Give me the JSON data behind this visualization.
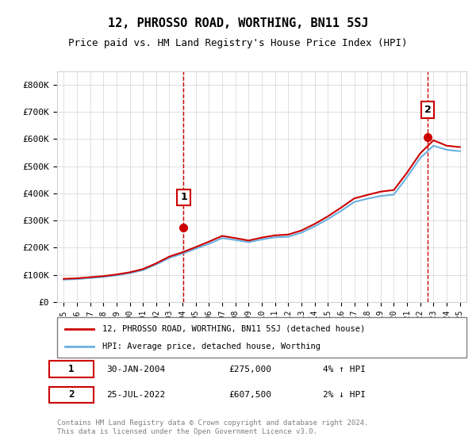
{
  "title": "12, PHROSSO ROAD, WORTHING, BN11 5SJ",
  "subtitle": "Price paid vs. HM Land Registry's House Price Index (HPI)",
  "hpi_label": "HPI: Average price, detached house, Worthing",
  "prop_label": "12, PHROSSO ROAD, WORTHING, BN11 5SJ (detached house)",
  "footer": "Contains HM Land Registry data © Crown copyright and database right 2024.\nThis data is licensed under the Open Government Licence v3.0.",
  "annotation1": {
    "num": "1",
    "date": "30-JAN-2004",
    "price": "£275,000",
    "pct": "4% ↑ HPI"
  },
  "annotation2": {
    "num": "2",
    "date": "25-JUL-2022",
    "price": "£607,500",
    "pct": "2% ↓ HPI"
  },
  "sale1_x": 2004.08,
  "sale1_y": 275000,
  "sale2_x": 2022.56,
  "sale2_y": 607500,
  "hpi_color": "#6ab0e0",
  "prop_color": "#cc0000",
  "dashed_color": "#cc0000",
  "ylim": [
    0,
    850000
  ],
  "yticks": [
    0,
    100000,
    200000,
    300000,
    400000,
    500000,
    600000,
    700000,
    800000
  ],
  "ytick_labels": [
    "£0",
    "£100K",
    "£200K",
    "£300K",
    "£400K",
    "£500K",
    "£600K",
    "£700K",
    "£800K"
  ],
  "xlim": [
    1994.5,
    2025.5
  ],
  "years": [
    1995,
    1996,
    1997,
    1998,
    1999,
    2000,
    2001,
    2002,
    2003,
    2004,
    2005,
    2006,
    2007,
    2008,
    2009,
    2010,
    2011,
    2012,
    2013,
    2014,
    2015,
    2016,
    2017,
    2018,
    2019,
    2020,
    2021,
    2022,
    2023,
    2024,
    2025
  ],
  "hpi_values": [
    82000,
    84000,
    88000,
    92000,
    98000,
    106000,
    117000,
    138000,
    162000,
    178000,
    196000,
    214000,
    235000,
    228000,
    220000,
    230000,
    238000,
    240000,
    255000,
    278000,
    305000,
    335000,
    368000,
    380000,
    390000,
    395000,
    460000,
    530000,
    575000,
    560000,
    555000
  ],
  "prop_values": [
    85000,
    87000,
    91000,
    95000,
    101000,
    109000,
    121000,
    142000,
    167000,
    183000,
    202000,
    222000,
    243000,
    235000,
    226000,
    237000,
    245000,
    248000,
    263000,
    287000,
    315000,
    347000,
    381000,
    394000,
    406000,
    412000,
    476000,
    547000,
    595000,
    575000,
    570000
  ]
}
